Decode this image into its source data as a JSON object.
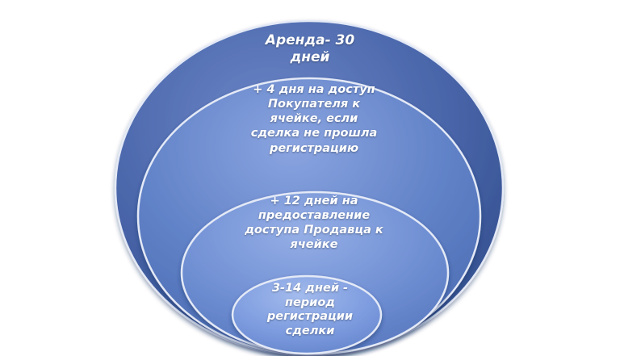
{
  "diagram": {
    "colors": {
      "outer": "#3d5a9c",
      "mid": "#5b7bc4",
      "inner": "#6e8fd2",
      "core": "#7d9ee0",
      "edge": "#dfe7f7"
    },
    "levels": [
      {
        "label": "Аренда- 30\nдней"
      },
      {
        "label": "+ 4 дня на доступ\nПокупателя к\nячейке, если\nсделка не прошла\nрегистрацию"
      },
      {
        "label": "+ 12 дней на\nпредоставление\nдоступа Продавца к\nячейке"
      },
      {
        "label": "3-14 дней -\nпериод\nрегистрации\nсделки"
      }
    ]
  }
}
